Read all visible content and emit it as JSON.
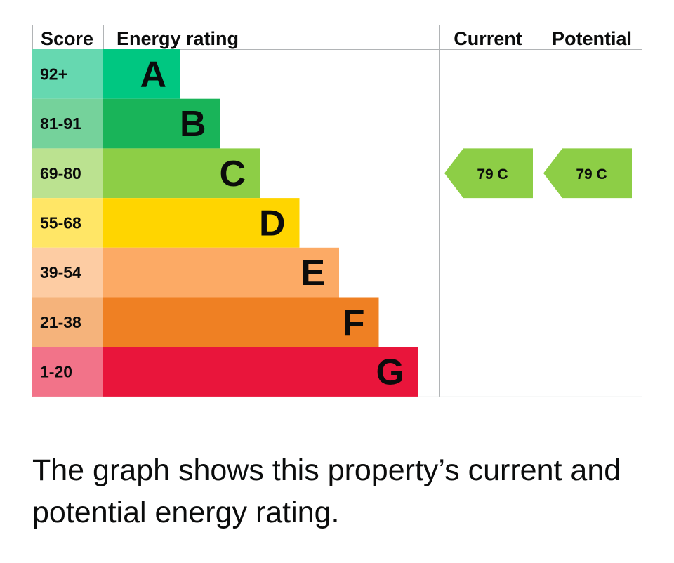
{
  "chart_data": {
    "type": "bar",
    "headers": {
      "score": "Score",
      "rating": "Energy rating",
      "current": "Current",
      "potential": "Potential"
    },
    "bands": [
      {
        "letter": "A",
        "score_range": "92+",
        "bar_color": "#00c781",
        "score_color": "#66d8b0"
      },
      {
        "letter": "B",
        "score_range": "81-91",
        "bar_color": "#19b459",
        "score_color": "#75d29b"
      },
      {
        "letter": "C",
        "score_range": "69-80",
        "bar_color": "#8dce46",
        "score_color": "#bbe290"
      },
      {
        "letter": "D",
        "score_range": "55-68",
        "bar_color": "#ffd500",
        "score_color": "#ffe666"
      },
      {
        "letter": "E",
        "score_range": "39-54",
        "bar_color": "#fcaa65",
        "score_color": "#fdcca3"
      },
      {
        "letter": "F",
        "score_range": "21-38",
        "bar_color": "#ef8023",
        "score_color": "#f5b37b"
      },
      {
        "letter": "G",
        "score_range": "1-20",
        "bar_color": "#e9153b",
        "score_color": "#f27389"
      }
    ],
    "current": {
      "score": 79,
      "band": "C",
      "label": "79  C",
      "color": "#8dce46"
    },
    "potential": {
      "score": 79,
      "band": "C",
      "label": "79  C",
      "color": "#8dce46"
    }
  },
  "caption": "The graph shows this property’s current and potential energy rating."
}
